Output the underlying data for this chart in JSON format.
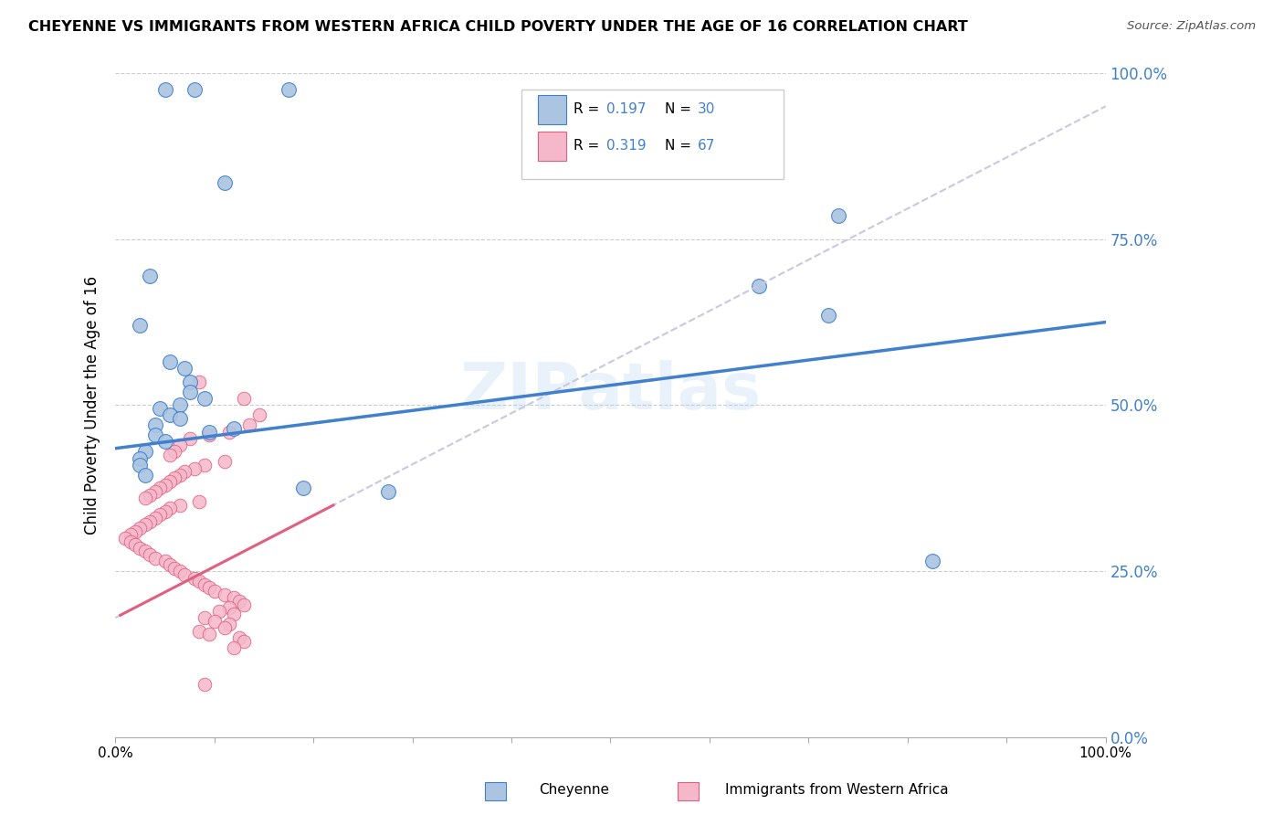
{
  "title": "CHEYENNE VS IMMIGRANTS FROM WESTERN AFRICA CHILD POVERTY UNDER THE AGE OF 16 CORRELATION CHART",
  "source": "Source: ZipAtlas.com",
  "ylabel": "Child Poverty Under the Age of 16",
  "xlim": [
    0.0,
    1.0
  ],
  "ylim": [
    0.0,
    1.0
  ],
  "yticks": [
    0.0,
    0.25,
    0.5,
    0.75,
    1.0
  ],
  "ytick_labels": [
    "0.0%",
    "25.0%",
    "50.0%",
    "75.0%",
    "100.0%"
  ],
  "xtick_labels": [
    "0.0%",
    "",
    "",
    "",
    "",
    "",
    "",
    "",
    "",
    "100.0%"
  ],
  "color_blue": "#aac4e2",
  "color_pink": "#f5b8cb",
  "line_blue": "#4080cc",
  "line_pink": "#e06080",
  "line_dashed_color": "#c8c8e0",
  "watermark": "ZIPatlas",
  "blue_points": [
    [
      0.05,
      0.975
    ],
    [
      0.08,
      0.975
    ],
    [
      0.175,
      0.975
    ],
    [
      0.11,
      0.835
    ],
    [
      0.035,
      0.695
    ],
    [
      0.025,
      0.62
    ],
    [
      0.055,
      0.565
    ],
    [
      0.07,
      0.555
    ],
    [
      0.075,
      0.535
    ],
    [
      0.075,
      0.52
    ],
    [
      0.09,
      0.51
    ],
    [
      0.065,
      0.5
    ],
    [
      0.045,
      0.495
    ],
    [
      0.055,
      0.485
    ],
    [
      0.065,
      0.48
    ],
    [
      0.04,
      0.47
    ],
    [
      0.12,
      0.465
    ],
    [
      0.095,
      0.46
    ],
    [
      0.04,
      0.455
    ],
    [
      0.05,
      0.445
    ],
    [
      0.03,
      0.43
    ],
    [
      0.025,
      0.42
    ],
    [
      0.025,
      0.41
    ],
    [
      0.03,
      0.395
    ],
    [
      0.19,
      0.375
    ],
    [
      0.275,
      0.37
    ],
    [
      0.73,
      0.785
    ],
    [
      0.65,
      0.68
    ],
    [
      0.72,
      0.635
    ],
    [
      0.825,
      0.265
    ]
  ],
  "pink_points": [
    [
      0.085,
      0.535
    ],
    [
      0.13,
      0.51
    ],
    [
      0.145,
      0.485
    ],
    [
      0.135,
      0.47
    ],
    [
      0.115,
      0.46
    ],
    [
      0.095,
      0.455
    ],
    [
      0.075,
      0.45
    ],
    [
      0.065,
      0.44
    ],
    [
      0.06,
      0.43
    ],
    [
      0.055,
      0.425
    ],
    [
      0.11,
      0.415
    ],
    [
      0.09,
      0.41
    ],
    [
      0.08,
      0.405
    ],
    [
      0.07,
      0.4
    ],
    [
      0.065,
      0.395
    ],
    [
      0.06,
      0.39
    ],
    [
      0.055,
      0.385
    ],
    [
      0.05,
      0.38
    ],
    [
      0.045,
      0.375
    ],
    [
      0.04,
      0.37
    ],
    [
      0.035,
      0.365
    ],
    [
      0.03,
      0.36
    ],
    [
      0.085,
      0.355
    ],
    [
      0.065,
      0.35
    ],
    [
      0.055,
      0.345
    ],
    [
      0.05,
      0.34
    ],
    [
      0.045,
      0.335
    ],
    [
      0.04,
      0.33
    ],
    [
      0.035,
      0.325
    ],
    [
      0.03,
      0.32
    ],
    [
      0.025,
      0.315
    ],
    [
      0.02,
      0.31
    ],
    [
      0.015,
      0.305
    ],
    [
      0.01,
      0.3
    ],
    [
      0.015,
      0.295
    ],
    [
      0.02,
      0.29
    ],
    [
      0.025,
      0.285
    ],
    [
      0.03,
      0.28
    ],
    [
      0.035,
      0.275
    ],
    [
      0.04,
      0.27
    ],
    [
      0.05,
      0.265
    ],
    [
      0.055,
      0.26
    ],
    [
      0.06,
      0.255
    ],
    [
      0.065,
      0.25
    ],
    [
      0.07,
      0.245
    ],
    [
      0.08,
      0.24
    ],
    [
      0.085,
      0.235
    ],
    [
      0.09,
      0.23
    ],
    [
      0.095,
      0.225
    ],
    [
      0.1,
      0.22
    ],
    [
      0.11,
      0.215
    ],
    [
      0.12,
      0.21
    ],
    [
      0.125,
      0.205
    ],
    [
      0.13,
      0.2
    ],
    [
      0.115,
      0.195
    ],
    [
      0.105,
      0.19
    ],
    [
      0.12,
      0.185
    ],
    [
      0.09,
      0.18
    ],
    [
      0.1,
      0.175
    ],
    [
      0.115,
      0.17
    ],
    [
      0.11,
      0.165
    ],
    [
      0.085,
      0.16
    ],
    [
      0.095,
      0.155
    ],
    [
      0.125,
      0.15
    ],
    [
      0.13,
      0.145
    ],
    [
      0.12,
      0.135
    ],
    [
      0.09,
      0.08
    ]
  ]
}
